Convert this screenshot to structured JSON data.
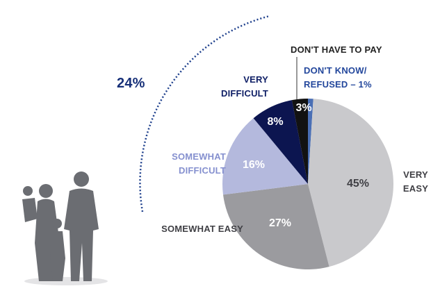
{
  "chart_data": {
    "type": "pie",
    "categories": [
      "DON'T KNOW/ REFUSED – 1%",
      "VERY EASY",
      "SOMEWHAT EASY",
      "SOMEWHAT DIFFICULT",
      "VERY DIFFICULT",
      "DON'T HAVE TO PAY"
    ],
    "values": [
      1,
      45,
      27,
      16,
      8,
      3
    ],
    "value_labels": [
      null,
      "45%",
      "27%",
      "16%",
      "8%",
      "3%"
    ],
    "colors": [
      "#4a6fb5",
      "#c9c9cc",
      "#9b9b9f",
      "#b4b9dd",
      "#0c1550",
      "#121212"
    ],
    "annotation": "24%"
  }
}
